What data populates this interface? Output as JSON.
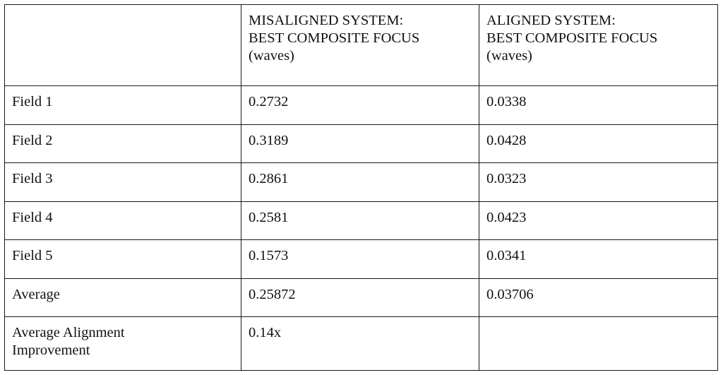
{
  "table": {
    "headers": [
      "",
      "MISALIGNED SYSTEM: BEST COMPOSITE FOCUS (waves)",
      "ALIGNED SYSTEM: BEST COMPOSITE FOCUS (waves)"
    ],
    "header_lines": [
      "",
      "MISALIGNED SYSTEM:\nBEST COMPOSITE FOCUS\n(waves)",
      "ALIGNED SYSTEM:\nBEST COMPOSITE FOCUS\n(waves)"
    ],
    "rows": [
      [
        "Field 1",
        "0.2732",
        "0.0338"
      ],
      [
        "Field 2",
        "0.3189",
        "0.0428"
      ],
      [
        "Field 3",
        "0.2861",
        "0.0323"
      ],
      [
        "Field 4",
        "0.2581",
        "0.0423"
      ],
      [
        "Field 5",
        "0.1573",
        "0.0341"
      ],
      [
        "Average",
        "0.25872",
        "0.03706"
      ],
      [
        "Average Alignment\nImprovement",
        "0.14x",
        ""
      ]
    ]
  }
}
